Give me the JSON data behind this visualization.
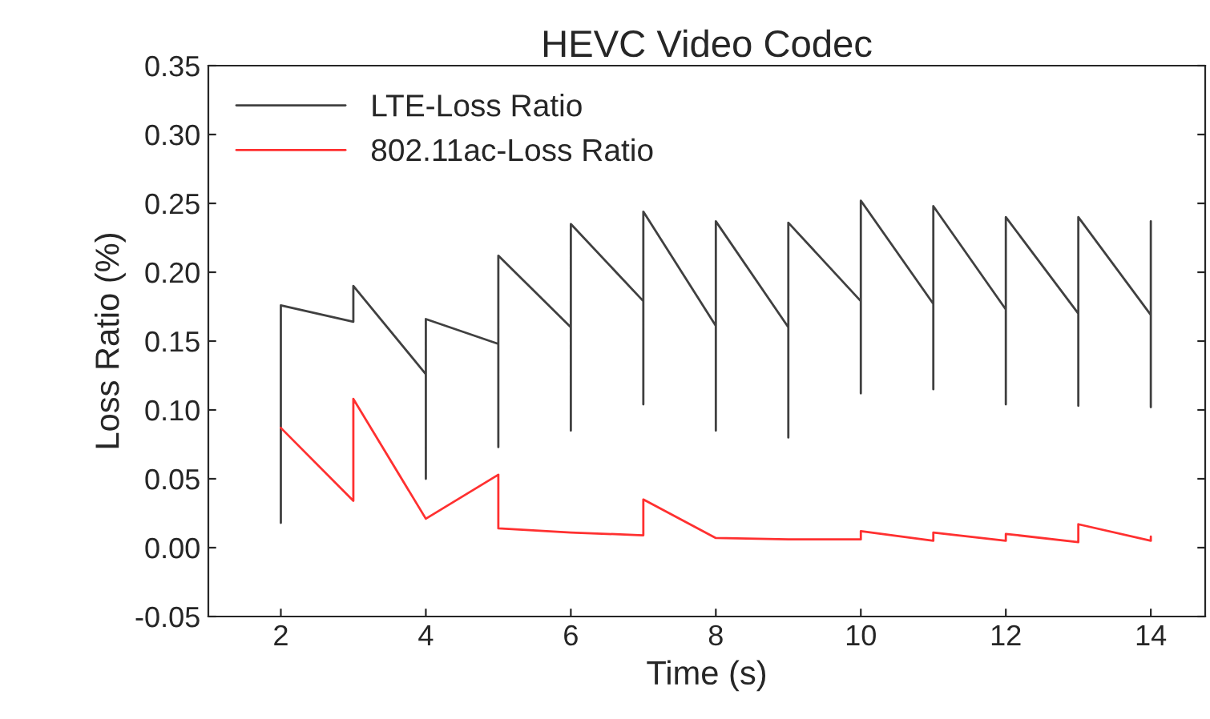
{
  "chart_data": {
    "type": "line",
    "title": "HEVC Video Codec",
    "xlabel": "Time (s)",
    "ylabel": "Loss Ratio (%)",
    "xlim": [
      1,
      14.75
    ],
    "xticks": [
      2,
      4,
      6,
      8,
      10,
      12,
      14
    ],
    "ylim": [
      -0.05,
      0.35
    ],
    "yticks": [
      -0.05,
      {
        "value": 0,
        "label": "0.00"
      },
      0.05,
      {
        "value": 0.1,
        "label": "0.10"
      },
      0.15,
      {
        "value": 0.2,
        "label": "0.20"
      },
      0.25,
      {
        "value": 0.3,
        "label": "0.30"
      },
      0.35
    ],
    "grid": false,
    "legend": "top left",
    "marker": "none",
    "line_style": "solid",
    "series": [
      {
        "name": "LTE-Loss Ratio",
        "color": "#404040",
        "x": [
          2,
          2,
          3,
          3,
          4,
          4,
          4,
          5,
          5,
          5,
          6,
          6,
          6,
          7,
          7,
          7,
          8,
          8,
          8,
          9,
          9,
          9,
          10,
          10,
          10,
          11,
          11,
          11,
          12,
          12,
          12,
          13,
          13,
          13,
          14,
          14,
          14
        ],
        "values": [
          0.018,
          0.176,
          0.164,
          0.19,
          0.126,
          0.05,
          0.166,
          0.148,
          0.073,
          0.212,
          0.16,
          0.085,
          0.235,
          0.179,
          0.104,
          0.244,
          0.161,
          0.085,
          0.237,
          0.16,
          0.08,
          0.236,
          0.179,
          0.112,
          0.252,
          0.177,
          0.115,
          0.248,
          0.173,
          0.104,
          0.24,
          0.17,
          0.103,
          0.24,
          0.169,
          0.102,
          0.237
        ]
      },
      {
        "name": "802.11ac-Loss Ratio",
        "color": "#ff3030",
        "x": [
          2,
          3,
          3,
          4,
          5,
          5,
          6,
          7,
          7,
          8,
          9,
          10,
          10,
          11,
          11,
          12,
          12,
          13,
          13,
          14,
          14
        ],
        "values": [
          0.087,
          0.034,
          0.108,
          0.021,
          0.053,
          0.014,
          0.011,
          0.009,
          0.035,
          0.007,
          0.006,
          0.006,
          0.012,
          0.005,
          0.011,
          0.005,
          0.01,
          0.004,
          0.017,
          0.005,
          0.008
        ]
      }
    ]
  }
}
